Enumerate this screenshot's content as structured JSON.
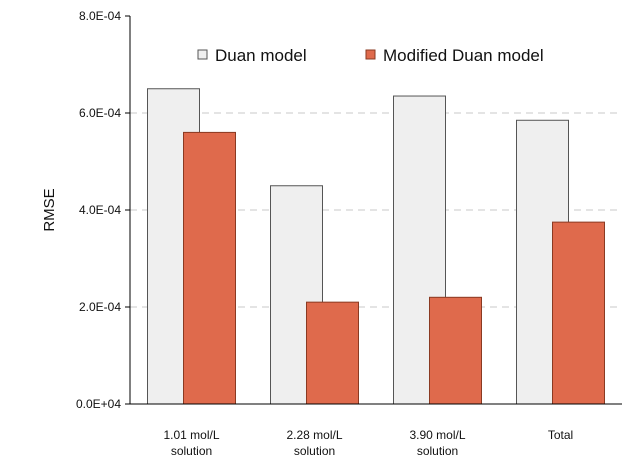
{
  "chart_data": {
    "type": "bar",
    "title": "",
    "xlabel": "",
    "ylabel": "RMSE",
    "ylim": [
      0,
      0.0008
    ],
    "yticks": [
      {
        "value": 0,
        "label": "0.0E+04"
      },
      {
        "value": 0.0002,
        "label": "2.0E-04"
      },
      {
        "value": 0.0004,
        "label": "4.0E-04"
      },
      {
        "value": 0.0006,
        "label": "6.0E-04"
      },
      {
        "value": 0.0008,
        "label": "8.0E-04"
      }
    ],
    "categories": [
      [
        "1.01 mol/L",
        "solution"
      ],
      [
        "2.28 mol/L",
        "solution"
      ],
      [
        "3.90 mol/L",
        "solution"
      ],
      [
        "Total"
      ]
    ],
    "series": [
      {
        "name": "Duan model",
        "color": "#efefef",
        "values": [
          0.00065,
          0.00045,
          0.000635,
          0.000585
        ]
      },
      {
        "name": "Modified Duan model",
        "color": "#df6a4c",
        "values": [
          0.00056,
          0.00021,
          0.00022,
          0.000375
        ]
      }
    ],
    "grid": "horizontal dashed",
    "legend_position": "top"
  }
}
